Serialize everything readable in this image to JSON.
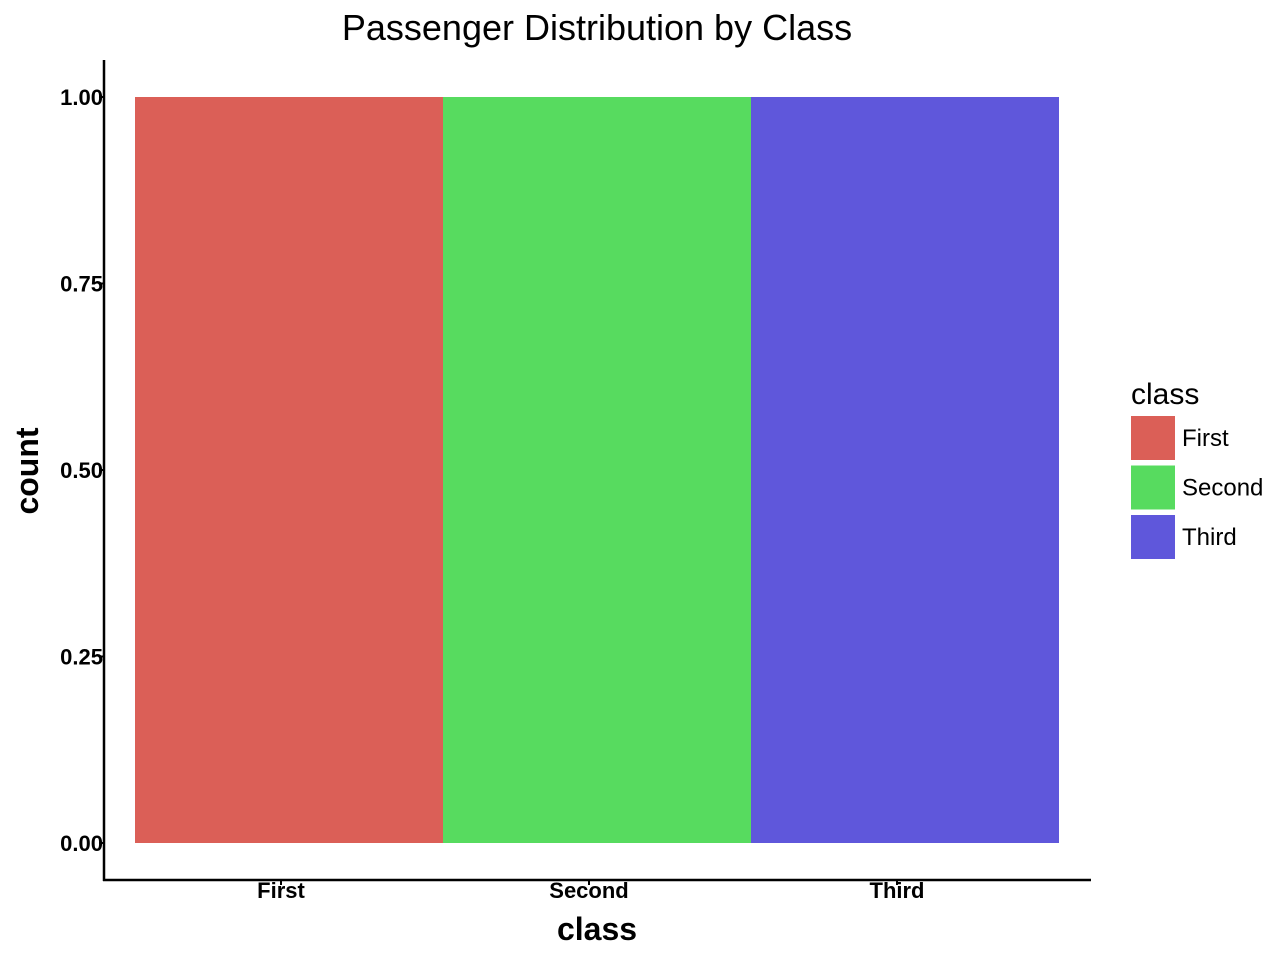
{
  "chart_data": {
    "type": "bar",
    "title": "Passenger Distribution by Class",
    "xlabel": "class",
    "ylabel": "count",
    "categories": [
      "First",
      "Second",
      "Third"
    ],
    "values": [
      1,
      1,
      1
    ],
    "colors": [
      "#DB5F57",
      "#57DB5F",
      "#5F57DB"
    ],
    "ylim": [
      0,
      1
    ],
    "yticks": [
      0,
      0.25,
      0.5,
      0.75,
      1
    ],
    "ytick_labels": [
      "0.00",
      "0.25",
      "0.50",
      "0.75",
      "1.00"
    ],
    "grid": false,
    "legend": {
      "title": "class",
      "placement": "right",
      "entries": [
        "First",
        "Second",
        "Third"
      ]
    }
  }
}
